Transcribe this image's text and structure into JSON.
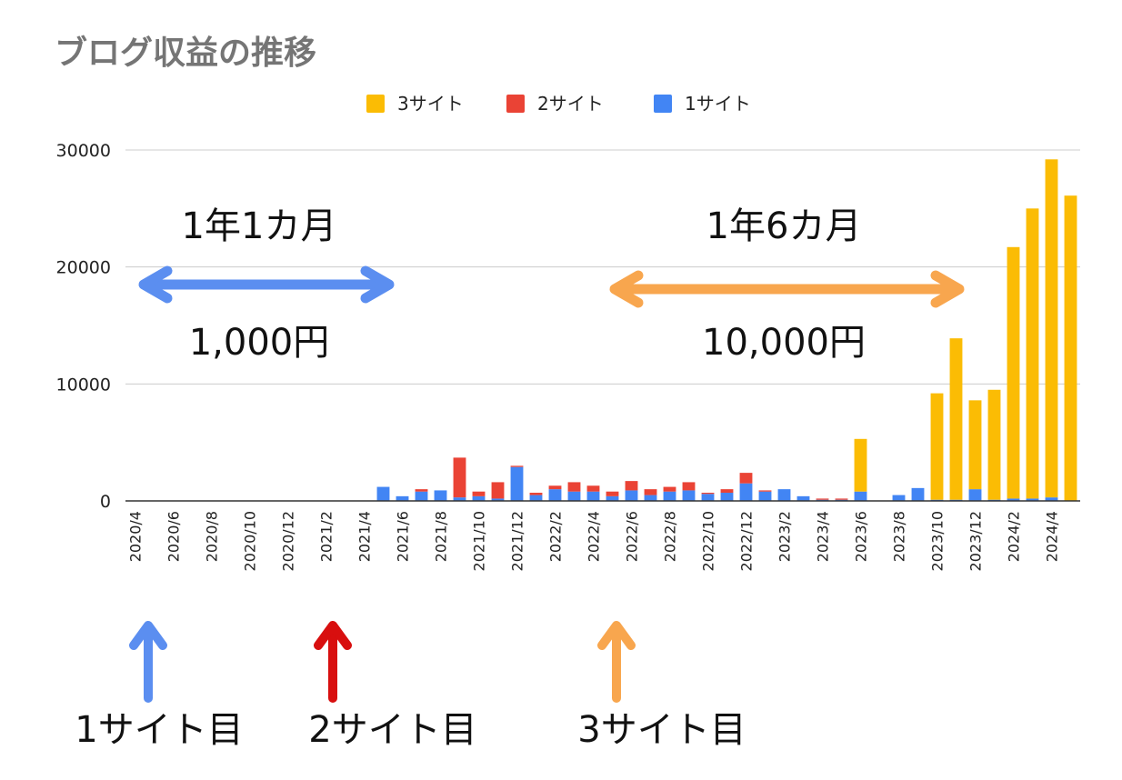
{
  "chart_data": {
    "type": "bar",
    "stacked": true,
    "title": "ブログ収益の推移",
    "xlabel": "",
    "ylabel": "",
    "ylim": [
      0,
      30000
    ],
    "yticks": [
      0,
      10000,
      20000,
      30000
    ],
    "grid": true,
    "legend_position": "top-center",
    "categories": [
      "2020/4",
      "2020/5",
      "2020/6",
      "2020/7",
      "2020/8",
      "2020/9",
      "2020/10",
      "2020/11",
      "2020/12",
      "2021/1",
      "2021/2",
      "2021/3",
      "2021/4",
      "2021/5",
      "2021/6",
      "2021/7",
      "2021/8",
      "2021/9",
      "2021/10",
      "2021/11",
      "2021/12",
      "2022/1",
      "2022/2",
      "2022/3",
      "2022/4",
      "2022/5",
      "2022/6",
      "2022/7",
      "2022/8",
      "2022/9",
      "2022/10",
      "2022/11",
      "2022/12",
      "2023/1",
      "2023/2",
      "2023/3",
      "2023/4",
      "2023/5",
      "2023/6",
      "2023/7",
      "2023/8",
      "2023/9",
      "2023/10",
      "2023/11",
      "2023/12",
      "2024/1",
      "2024/2",
      "2024/3",
      "2024/4",
      "2024/5"
    ],
    "xtick_labels": [
      "2020/4",
      "2020/6",
      "2020/8",
      "2020/10",
      "2020/12",
      "2021/2",
      "2021/4",
      "2021/6",
      "2021/8",
      "2021/10",
      "2021/12",
      "2022/2",
      "2022/4",
      "2022/6",
      "2022/8",
      "2022/10",
      "2022/12",
      "2023/2",
      "2023/4",
      "2023/6",
      "2023/8",
      "2023/10",
      "2023/12",
      "2024/2",
      "2024/4"
    ],
    "series": [
      {
        "name": "1サイト",
        "color": "#4285f4",
        "values": [
          0,
          0,
          0,
          0,
          0,
          0,
          0,
          0,
          0,
          0,
          0,
          0,
          0,
          1200,
          400,
          800,
          900,
          300,
          400,
          200,
          2900,
          500,
          1000,
          800,
          800,
          400,
          900,
          500,
          800,
          900,
          600,
          700,
          1500,
          800,
          1000,
          400,
          100,
          100,
          800,
          0,
          500,
          1100,
          100,
          100,
          1000,
          100,
          200,
          200,
          300,
          0
        ]
      },
      {
        "name": "2サイト",
        "color": "#ea4335",
        "values": [
          0,
          0,
          0,
          0,
          0,
          0,
          0,
          0,
          0,
          0,
          0,
          0,
          0,
          0,
          0,
          200,
          0,
          3400,
          400,
          1400,
          100,
          200,
          300,
          800,
          500,
          400,
          800,
          500,
          400,
          700,
          100,
          300,
          900,
          100,
          0,
          0,
          100,
          100,
          0,
          0,
          0,
          0,
          0,
          0,
          0,
          0,
          0,
          0,
          0,
          0
        ]
      },
      {
        "name": "3サイト",
        "color": "#fbbc04",
        "values": [
          0,
          0,
          0,
          0,
          0,
          0,
          0,
          0,
          0,
          0,
          0,
          0,
          0,
          0,
          0,
          0,
          0,
          0,
          0,
          0,
          0,
          0,
          0,
          0,
          0,
          0,
          0,
          0,
          0,
          0,
          0,
          0,
          0,
          0,
          0,
          0,
          0,
          0,
          4500,
          0,
          0,
          0,
          9100,
          13800,
          7600,
          9400,
          21500,
          24800,
          28900,
          26100
        ]
      }
    ],
    "legend_order": [
      "3サイト",
      "2サイト",
      "1サイト"
    ]
  },
  "annotations": {
    "period1": {
      "duration": "1年1カ月",
      "amount": "1,000円",
      "color": "#5b8ef0"
    },
    "period2": {
      "duration": "1年6カ月",
      "amount": "10,000円",
      "color": "#f8a64e"
    },
    "sites": [
      {
        "label": "1サイト目",
        "color": "#5b8ef0"
      },
      {
        "label": "2サイト目",
        "color": "#d80f0f"
      },
      {
        "label": "3サイト目",
        "color": "#f8a64e"
      }
    ]
  }
}
